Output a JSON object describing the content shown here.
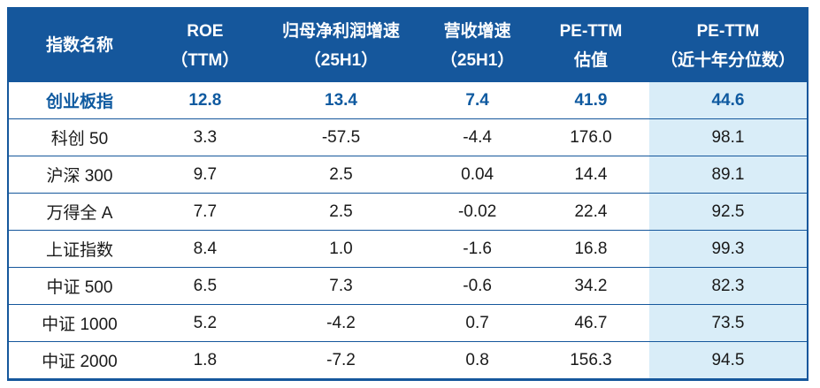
{
  "colors": {
    "header_bg": "#15579c",
    "header_text": "#ffffff",
    "border": "#15579c",
    "highlight_row_text": "#0f5aa0",
    "percentile_column_bg": "#d9edf8",
    "body_text": "#1a1a1a"
  },
  "header": {
    "name_col": "指数名称",
    "cols": [
      {
        "line1": "ROE",
        "line2": "（TTM）"
      },
      {
        "line1": "归母净利润增速",
        "line2": "（25H1）"
      },
      {
        "line1": "营收增速",
        "line2": "（25H1）"
      },
      {
        "line1": "PE-TTM",
        "line2": "估值"
      },
      {
        "line1": "PE-TTM",
        "line2": "（近十年分位数）"
      }
    ]
  },
  "chart_data": {
    "type": "table",
    "columns": [
      "指数名称",
      "ROE（TTM）",
      "归母净利润增速（25H1）",
      "营收增速（25H1）",
      "PE-TTM估值",
      "PE-TTM（近十年分位数）"
    ],
    "highlighted_row": "创业板指",
    "rows": [
      [
        "创业板指",
        "12.8",
        "13.4",
        "7.4",
        "41.9",
        "44.6"
      ],
      [
        "科创 50",
        "3.3",
        "-57.5",
        "-4.4",
        "176.0",
        "98.1"
      ],
      [
        "沪深 300",
        "9.7",
        "2.5",
        "0.04",
        "14.4",
        "89.1"
      ],
      [
        "万得全 A",
        "7.7",
        "2.5",
        "-0.02",
        "22.4",
        "92.5"
      ],
      [
        "上证指数",
        "8.4",
        "1.0",
        "-1.6",
        "16.8",
        "99.3"
      ],
      [
        "中证 500",
        "6.5",
        "7.3",
        "-0.6",
        "34.2",
        "82.3"
      ],
      [
        "中证 1000",
        "5.2",
        "-4.2",
        "0.7",
        "46.7",
        "73.5"
      ],
      [
        "中证 2000",
        "1.8",
        "-7.2",
        "0.8",
        "156.3",
        "94.5"
      ]
    ]
  }
}
